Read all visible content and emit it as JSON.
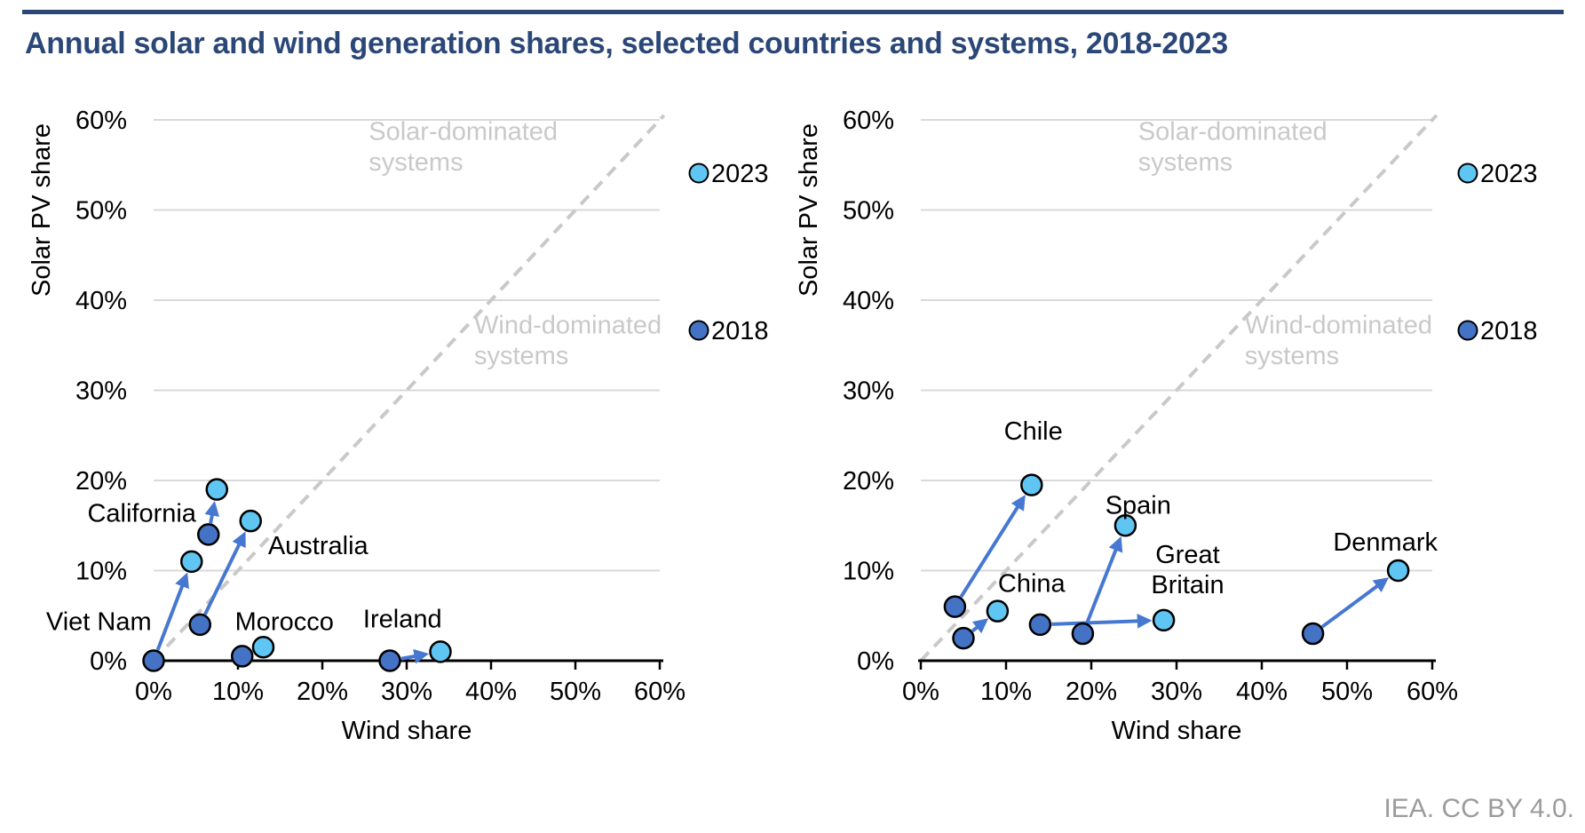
{
  "page": {
    "title": "Annual solar and wind generation shares, selected countries and systems, 2018-2023",
    "attribution": "IEA. CC BY 4.0."
  },
  "chart_data": {
    "type": "scatter",
    "title": "Annual solar and wind generation shares, selected countries and systems, 2018-2023",
    "xlabel": "Wind share",
    "ylabel": "Solar PV share",
    "xlim": [
      0,
      60
    ],
    "ylim": [
      0,
      60
    ],
    "tick_values": [
      0,
      10,
      20,
      30,
      40,
      50,
      60
    ],
    "tick_labels": [
      "0%",
      "10%",
      "20%",
      "30%",
      "40%",
      "50%",
      "60%"
    ],
    "grid": "horizontal-only",
    "legend_position": "right-of-plot",
    "series_labels": {
      "y2023": "2023",
      "y2018": "2018"
    },
    "zone_labels": {
      "solar": [
        "Solar-dominated",
        "systems"
      ],
      "wind": [
        "Wind-dominated",
        "systems"
      ]
    },
    "diagonal": "dashed y=x reference line from origin",
    "units": "percent of annual generation; x = wind share, y = solar PV share; arrows run from 2018 point to 2023 point",
    "charts": [
      {
        "id": "left",
        "countries": [
          {
            "name": "Viet Nam",
            "label_lines": [
              "Viet Nam"
            ],
            "label_at": [
              -6.5,
              4.4
            ],
            "p2018": [
              0,
              0
            ],
            "p2023": [
              4.5,
              11
            ]
          },
          {
            "name": "California",
            "label_lines": [
              "California"
            ],
            "label_at": [
              -1.4,
              16.4
            ],
            "p2018": [
              6.5,
              14
            ],
            "p2023": [
              7.5,
              19
            ]
          },
          {
            "name": "Australia",
            "label_lines": [
              "Australia"
            ],
            "label_at": [
              19.5,
              12.8
            ],
            "p2018": [
              5.5,
              4
            ],
            "p2023": [
              11.5,
              15.5
            ]
          },
          {
            "name": "Morocco",
            "label_lines": [
              "Morocco"
            ],
            "label_at": [
              15.5,
              4.4
            ],
            "p2018": [
              10.5,
              0.5
            ],
            "p2023": [
              13,
              1.5
            ]
          },
          {
            "name": "Ireland",
            "label_lines": [
              "Ireland"
            ],
            "label_at": [
              29.5,
              4.7
            ],
            "p2018": [
              28,
              0
            ],
            "p2023": [
              34,
              1
            ]
          }
        ]
      },
      {
        "id": "right",
        "countries": [
          {
            "name": "Chile",
            "label_lines": [
              "Chile"
            ],
            "label_at": [
              13.2,
              25.5
            ],
            "p2018": [
              4,
              6
            ],
            "p2023": [
              13,
              19.5
            ]
          },
          {
            "name": "China",
            "label_lines": [
              "China"
            ],
            "label_at": [
              13,
              8.6
            ],
            "p2018": [
              5,
              2.5
            ],
            "p2023": [
              9,
              5.5
            ]
          },
          {
            "name": "Great Britain",
            "label_lines": [
              "Great",
              "Britain"
            ],
            "label_at": [
              31.3,
              11.8
            ],
            "p2018": [
              14,
              4
            ],
            "p2023": [
              28.5,
              4.5
            ]
          },
          {
            "name": "Spain",
            "label_lines": [
              "Spain"
            ],
            "label_at": [
              25.5,
              17.3
            ],
            "p2018": [
              19,
              3
            ],
            "p2023": [
              24,
              15
            ]
          },
          {
            "name": "Denmark",
            "label_lines": [
              "Denmark"
            ],
            "label_at": [
              54.5,
              13.2
            ],
            "p2018": [
              46,
              3
            ],
            "p2023": [
              56,
              10
            ]
          }
        ]
      }
    ],
    "colors": {
      "y2023": "#5FC6F3",
      "y2018": "#4472C4",
      "arrow": "#4678D2",
      "grid": "#D9D9D9",
      "diagonal": "#C9C9C9",
      "zone_text": "#C9C9C9",
      "axis": "#000000",
      "title": "#2B4778",
      "attribution": "#9B9B9B"
    }
  }
}
